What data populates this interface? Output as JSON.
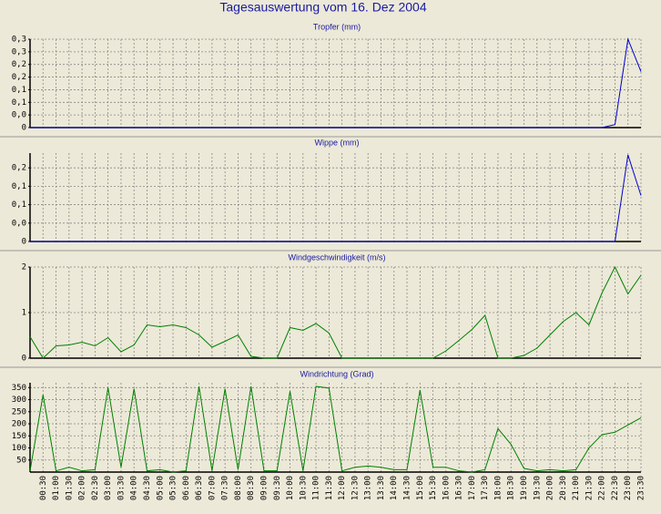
{
  "title": "Tagesauswertung vom 16. Dez 2004",
  "chart_data": [
    {
      "type": "line",
      "title": "Tropfer (mm)",
      "color": "#0000cc",
      "grid": true,
      "ylim": [
        0,
        0.3
      ],
      "yticks": [
        0,
        {
          "value": 0.0429,
          "label": "0,0"
        },
        {
          "value": 0.0857,
          "label": "0,1"
        },
        {
          "value": 0.1286,
          "label": "0,1"
        },
        {
          "value": 0.1714,
          "label": "0,2"
        },
        {
          "value": 0.2143,
          "label": "0,2"
        },
        {
          "value": 0.2571,
          "label": "0,3"
        },
        {
          "value": 0.3,
          "label": "0,3"
        }
      ],
      "values": [
        0,
        0,
        0,
        0,
        0,
        0,
        0,
        0,
        0,
        0,
        0,
        0,
        0,
        0,
        0,
        0,
        0,
        0,
        0,
        0,
        0,
        0,
        0,
        0,
        0,
        0,
        0,
        0,
        0,
        0,
        0,
        0,
        0,
        0,
        0,
        0,
        0,
        0,
        0,
        0,
        0,
        0,
        0,
        0,
        0,
        0.01,
        0.3,
        0.19
      ]
    },
    {
      "type": "line",
      "title": "Wippe (mm)",
      "color": "#0000cc",
      "grid": true,
      "ylim": [
        0,
        0.24
      ],
      "yticks": [
        0,
        {
          "value": 0.05,
          "label": "0,0"
        },
        {
          "value": 0.1,
          "label": "0,1"
        },
        {
          "value": 0.15,
          "label": "0,1"
        },
        {
          "value": 0.2,
          "label": "0,2"
        }
      ],
      "values": [
        0,
        0,
        0,
        0,
        0,
        0,
        0,
        0,
        0,
        0,
        0,
        0,
        0,
        0,
        0,
        0,
        0,
        0,
        0,
        0,
        0,
        0,
        0,
        0,
        0,
        0,
        0,
        0,
        0,
        0,
        0,
        0,
        0,
        0,
        0,
        0,
        0,
        0,
        0,
        0,
        0,
        0,
        0,
        0,
        0,
        0,
        0.235,
        0.125
      ]
    },
    {
      "type": "line",
      "title": "Windgeschwindigkeit (m/s)",
      "color": "#008000",
      "grid": true,
      "ylim": [
        0,
        2
      ],
      "yticks": [
        0,
        1,
        2
      ],
      "values": [
        0.47,
        0,
        0.27,
        0.29,
        0.35,
        0.27,
        0.45,
        0.14,
        0.29,
        0.73,
        0.69,
        0.73,
        0.67,
        0.51,
        0.24,
        0.37,
        0.51,
        0.04,
        0,
        0,
        0.67,
        0.61,
        0.76,
        0.55,
        0,
        0,
        0,
        0,
        0,
        0,
        0,
        0,
        0.16,
        0.39,
        0.63,
        0.94,
        0,
        0,
        0.06,
        0.22,
        0.51,
        0.8,
        1.0,
        0.73,
        1.43,
        2.0,
        1.41,
        1.82
      ]
    },
    {
      "type": "line",
      "title": "Windrichtung (Grad)",
      "color": "#008000",
      "grid": true,
      "ylim": [
        0,
        370
      ],
      "yticks": [
        50,
        100,
        150,
        200,
        250,
        300,
        350
      ],
      "categories": [
        null,
        "00:30",
        "01:00",
        "01:30",
        "02:00",
        "02:30",
        "03:00",
        "03:30",
        "04:00",
        "04:30",
        "05:00",
        "05:30",
        "06:00",
        "06:30",
        "07:00",
        "07:30",
        "08:00",
        "08:30",
        "09:00",
        "09:30",
        "10:00",
        "10:30",
        "11:00",
        "11:30",
        "12:00",
        "12:30",
        "13:00",
        "13:30",
        "14:00",
        "14:30",
        "15:00",
        "15:30",
        "16:00",
        "16:30",
        "17:00",
        "17:30",
        "18:00",
        "18:30",
        "19:00",
        "19:30",
        "20:00",
        "20:30",
        "21:00",
        "21:30",
        "22:00",
        "22:30",
        "23:00",
        "23:30"
      ],
      "values": [
        5,
        320,
        5,
        20,
        5,
        10,
        350,
        20,
        345,
        5,
        10,
        0,
        5,
        355,
        5,
        345,
        10,
        355,
        5,
        5,
        335,
        5,
        355,
        348,
        5,
        20,
        25,
        20,
        10,
        10,
        340,
        20,
        20,
        5,
        0,
        10,
        180,
        115,
        15,
        5,
        10,
        5,
        10,
        100,
        155,
        165,
        195,
        225
      ]
    }
  ]
}
